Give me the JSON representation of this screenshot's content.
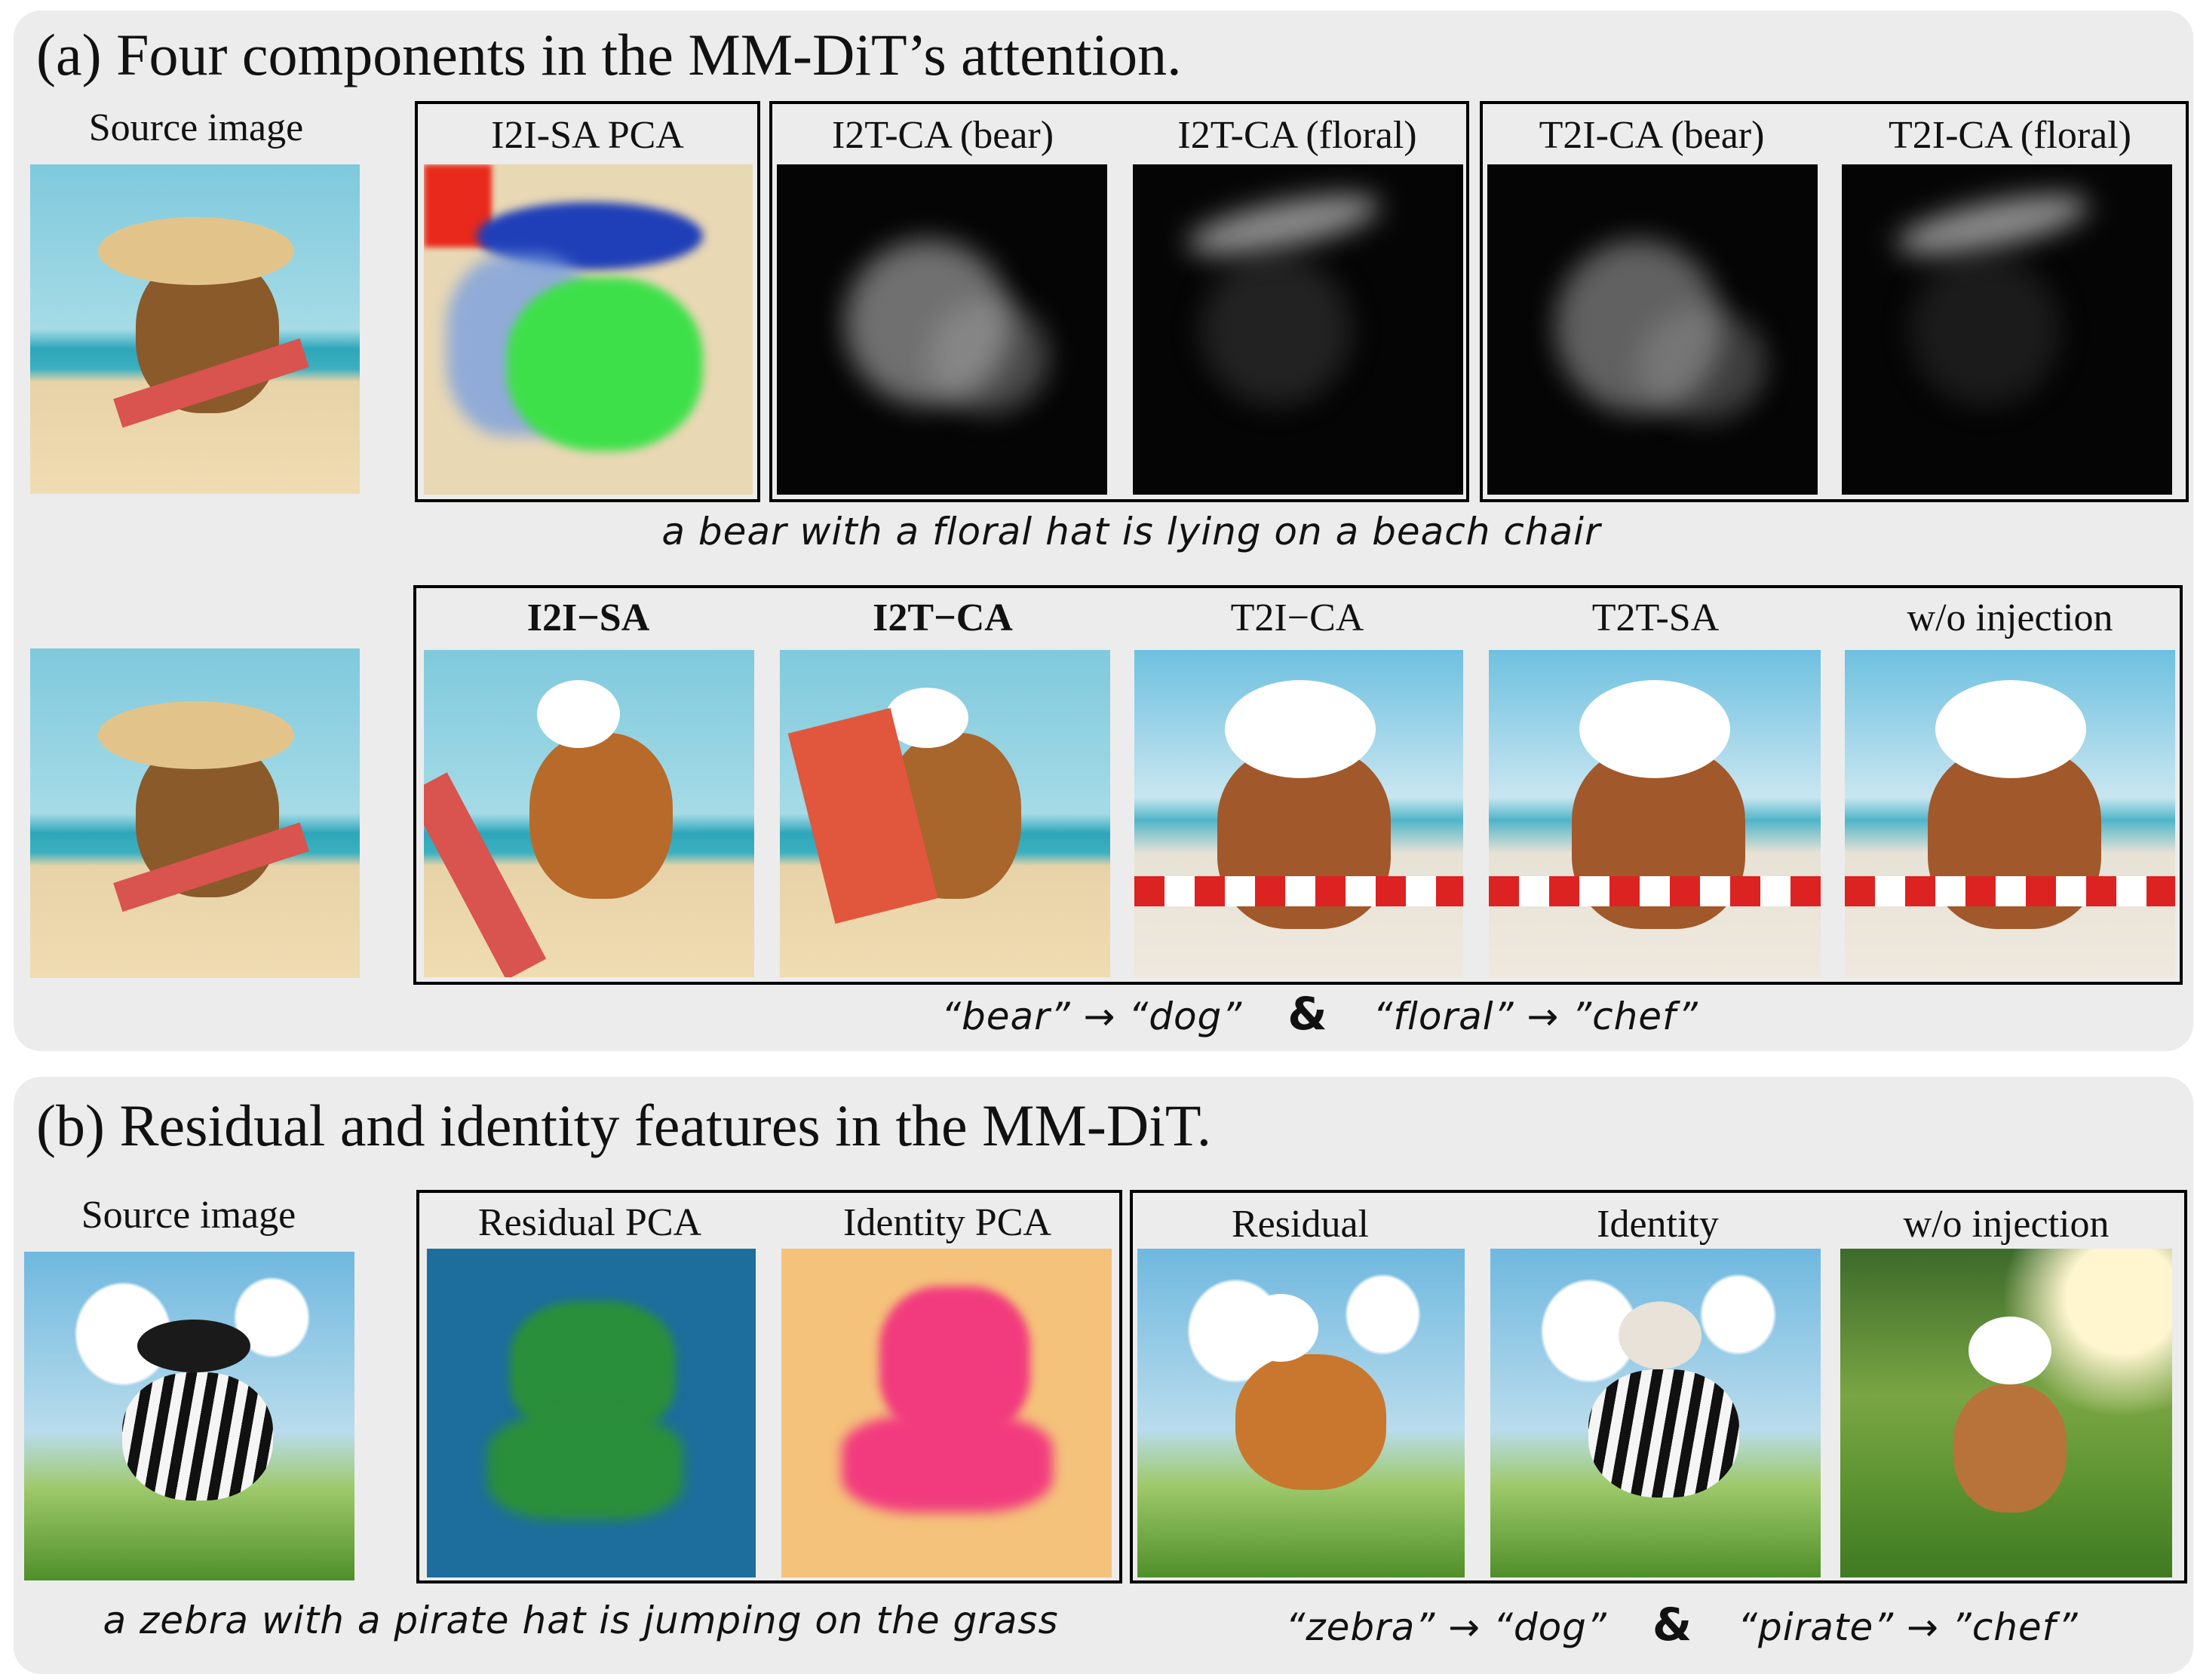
{
  "section_a": {
    "title": "(a) Four components in the MM-DiT’s attention.",
    "source_label": "Source image",
    "top_labels": {
      "i2i_sa_pca": "I2I-SA PCA",
      "i2t_ca_bear": "I2T-CA (bear)",
      "i2t_ca_floral": "I2T-CA (floral)",
      "t2i_ca_bear": "T2I-CA (bear)",
      "t2i_ca_floral": "T2I-CA (floral)"
    },
    "prompt": "a bear with a floral hat is lying on a beach chair",
    "bottom_labels": {
      "i2i_sa": "I2I−SA",
      "i2t_ca": "I2T−CA",
      "t2i_ca": "T2I−CA",
      "t2t_sa": "T2T-SA",
      "wo_injection": "w/o injection"
    },
    "edit_left": "“bear” → “dog”",
    "edit_amp": "&",
    "edit_right": "“floral” → ”chef”"
  },
  "section_b": {
    "title": "(b) Residual and identity features in the MM-DiT.",
    "source_label": "Source image",
    "labels": {
      "residual_pca": "Residual PCA",
      "identity_pca": "Identity PCA",
      "residual": "Residual",
      "identity": "Identity",
      "wo_injection": "w/o injection"
    },
    "prompt": "a zebra with a pirate hat is jumping on the grass",
    "edit_left": "“zebra” → “dog”",
    "edit_amp": "&",
    "edit_right": "“pirate” → ”chef”"
  },
  "colors": {
    "panel_bg": "#ececec",
    "frame": "#000000",
    "pca_red": "#e8291c",
    "pca_blue": "#1f3fb8",
    "pca_green": "#3ee04a",
    "pca_pink": "#f23b7e"
  }
}
